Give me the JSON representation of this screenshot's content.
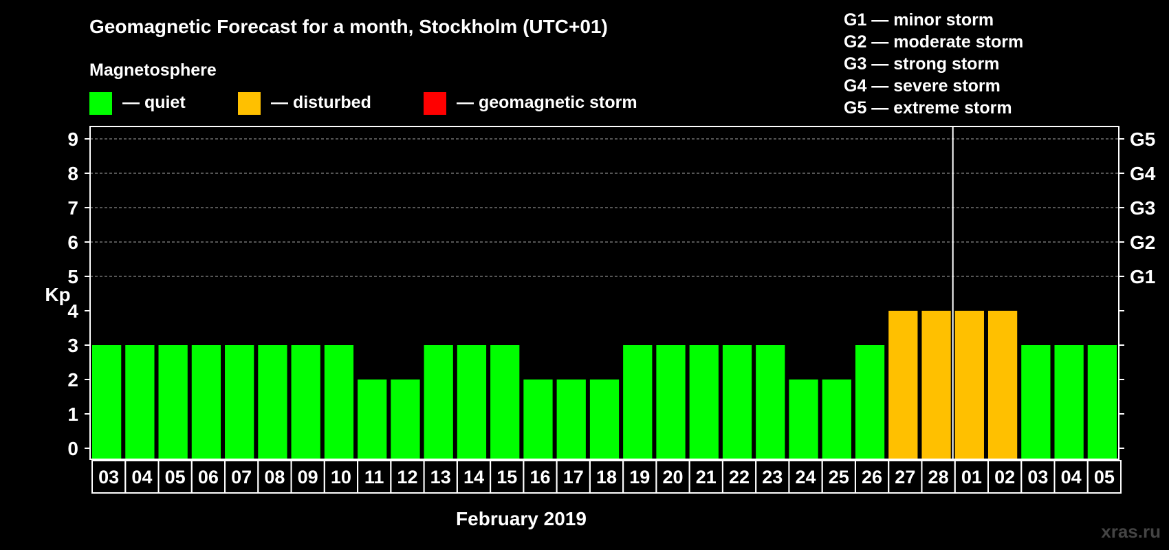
{
  "chart_data": {
    "type": "bar",
    "title": "Geomagnetic Forecast for a month, Stockholm (UTC+01)",
    "legend": {
      "heading": "Magnetosphere",
      "items": [
        {
          "label": "— quiet",
          "color": "#00ff00"
        },
        {
          "label": "— disturbed",
          "color": "#ffc000"
        },
        {
          "label": "— geomagnetic storm",
          "color": "#ff0000"
        }
      ]
    },
    "storm_scale": [
      "G1 — minor storm",
      "G2 — moderate storm",
      "G3 — strong storm",
      "G4 — severe storm",
      "G5 — extreme storm"
    ],
    "ylabel": "Kp",
    "ylim": [
      0,
      9
    ],
    "yticks": [
      "0",
      "1",
      "2",
      "3",
      "4",
      "5",
      "6",
      "7",
      "8",
      "9"
    ],
    "right_ticks": [
      {
        "kp": 5,
        "label": "G1"
      },
      {
        "kp": 6,
        "label": "G2"
      },
      {
        "kp": 7,
        "label": "G3"
      },
      {
        "kp": 8,
        "label": "G4"
      },
      {
        "kp": 9,
        "label": "G5"
      }
    ],
    "xlabel": "February 2019",
    "month_divider_after_index": 25,
    "categories": [
      "03",
      "04",
      "05",
      "06",
      "07",
      "08",
      "09",
      "10",
      "11",
      "12",
      "13",
      "14",
      "15",
      "16",
      "17",
      "18",
      "19",
      "20",
      "21",
      "22",
      "23",
      "24",
      "25",
      "26",
      "27",
      "28",
      "01",
      "02",
      "03",
      "04",
      "05"
    ],
    "values": [
      3,
      3,
      3,
      3,
      3,
      3,
      3,
      3,
      2,
      2,
      3,
      3,
      3,
      2,
      2,
      2,
      3,
      3,
      3,
      3,
      3,
      2,
      2,
      3,
      4,
      4,
      4,
      4,
      3,
      3,
      3
    ],
    "levels": [
      "quiet",
      "quiet",
      "quiet",
      "quiet",
      "quiet",
      "quiet",
      "quiet",
      "quiet",
      "quiet",
      "quiet",
      "quiet",
      "quiet",
      "quiet",
      "quiet",
      "quiet",
      "quiet",
      "quiet",
      "quiet",
      "quiet",
      "quiet",
      "quiet",
      "quiet",
      "quiet",
      "quiet",
      "disturbed",
      "disturbed",
      "disturbed",
      "disturbed",
      "quiet",
      "quiet",
      "quiet"
    ],
    "level_colors": {
      "quiet": "#00ff00",
      "disturbed": "#ffc000",
      "storm": "#ff0000"
    },
    "grid": true
  },
  "watermark": "xras.ru"
}
